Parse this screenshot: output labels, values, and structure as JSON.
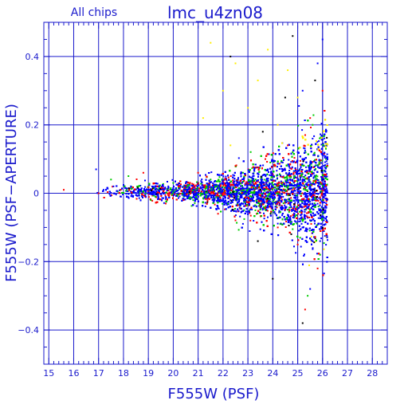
{
  "chart_data": {
    "type": "scatter",
    "title": "lmc_u4zn08",
    "subtitle": "All chips",
    "xlabel": "F555W (PSF)",
    "ylabel": "F555W (PSF−APERTURE)",
    "xlim": [
      14.8,
      28.6
    ],
    "ylim": [
      -0.5,
      0.5
    ],
    "xticks": [
      15,
      16,
      17,
      18,
      19,
      20,
      21,
      22,
      23,
      24,
      25,
      26,
      27,
      28
    ],
    "xtick_labels": [
      "15",
      "16",
      "17",
      "18",
      "19",
      "20",
      "21",
      "22",
      "23",
      "24",
      "25",
      "26",
      "27",
      "28"
    ],
    "yticks": [
      -0.4,
      -0.2,
      0,
      0.2,
      0.4
    ],
    "ytick_labels": [
      "−0.4",
      "−0.2",
      "0",
      "0.2",
      "0.4"
    ],
    "vlines": [
      25.0,
      26.0
    ],
    "grid": true,
    "series_colors": {
      "chip1": "#ff0000",
      "chip2": "#00cc00",
      "chip3": "#0000ff",
      "chip4": "#ffee00",
      "extra": "#000000"
    },
    "series": [
      {
        "color": "#0000ff",
        "points": [
          [
            16.9,
            0.07
          ],
          [
            17.2,
            0.01
          ],
          [
            17.6,
            0.02
          ],
          [
            17.9,
            -0.01
          ],
          [
            18.3,
            0.02
          ],
          [
            18.6,
            0.0
          ],
          [
            19.0,
            0.01
          ],
          [
            19.4,
            -0.01
          ],
          [
            19.8,
            0.02
          ],
          [
            20.2,
            0.0
          ],
          [
            20.6,
            0.01
          ],
          [
            21.0,
            -0.01
          ],
          [
            21.4,
            0.02
          ],
          [
            21.7,
            0.0
          ],
          [
            22.0,
            0.03
          ],
          [
            22.3,
            -0.02
          ],
          [
            22.6,
            0.04
          ],
          [
            22.9,
            -0.03
          ],
          [
            23.2,
            0.05
          ],
          [
            23.5,
            -0.04
          ],
          [
            23.8,
            0.07
          ],
          [
            24.1,
            -0.06
          ],
          [
            24.4,
            0.09
          ],
          [
            24.7,
            -0.08
          ],
          [
            25.0,
            0.12
          ],
          [
            25.3,
            -0.11
          ],
          [
            25.6,
            0.16
          ],
          [
            25.9,
            -0.14
          ],
          [
            25.2,
            0.3
          ],
          [
            25.8,
            0.38
          ],
          [
            25.5,
            -0.28
          ],
          [
            26.0,
            0.45
          ]
        ]
      },
      {
        "color": "#00cc00",
        "points": [
          [
            17.5,
            0.04
          ],
          [
            18.2,
            0.05
          ],
          [
            19.1,
            -0.02
          ],
          [
            20.0,
            0.03
          ],
          [
            20.8,
            -0.02
          ],
          [
            21.5,
            0.04
          ],
          [
            22.2,
            -0.03
          ],
          [
            22.8,
            0.06
          ],
          [
            23.3,
            -0.05
          ],
          [
            23.9,
            0.09
          ],
          [
            24.3,
            -0.09
          ],
          [
            24.8,
            0.12
          ],
          [
            25.1,
            -0.13
          ],
          [
            25.6,
            0.2
          ],
          [
            25.9,
            -0.18
          ],
          [
            25.4,
            -0.3
          ]
        ]
      },
      {
        "color": "#ff0000",
        "points": [
          [
            15.6,
            0.01
          ],
          [
            17.0,
            0.0
          ],
          [
            18.8,
            0.06
          ],
          [
            19.7,
            -0.03
          ],
          [
            21.0,
            0.06
          ],
          [
            21.8,
            -0.06
          ],
          [
            22.5,
            0.08
          ],
          [
            23.1,
            -0.08
          ],
          [
            23.7,
            0.1
          ],
          [
            24.2,
            -0.1
          ],
          [
            24.6,
            0.14
          ],
          [
            25.0,
            -0.15
          ],
          [
            25.5,
            0.22
          ],
          [
            25.8,
            -0.22
          ],
          [
            26.0,
            0.3
          ],
          [
            25.3,
            -0.34
          ]
        ]
      },
      {
        "color": "#ffee00",
        "points": [
          [
            21.5,
            0.44
          ],
          [
            22.0,
            0.3
          ],
          [
            22.5,
            0.38
          ],
          [
            23.0,
            0.25
          ],
          [
            23.4,
            0.33
          ],
          [
            23.8,
            0.42
          ],
          [
            24.2,
            0.2
          ],
          [
            24.6,
            0.36
          ],
          [
            25.0,
            0.28
          ],
          [
            22.3,
            0.14
          ],
          [
            21.2,
            0.22
          ]
        ]
      },
      {
        "color": "#000000",
        "points": [
          [
            22.3,
            0.4
          ],
          [
            23.6,
            0.18
          ],
          [
            24.0,
            -0.25
          ],
          [
            24.5,
            0.28
          ],
          [
            25.2,
            -0.38
          ],
          [
            25.7,
            0.33
          ],
          [
            23.4,
            -0.14
          ],
          [
            24.8,
            0.46
          ]
        ]
      }
    ],
    "density_model": {
      "center_offset": 0.005,
      "n_points": 9000,
      "mag_range": [
        16.8,
        26.3
      ],
      "spread_base": 0.006,
      "spread_growth": 0.0028,
      "cutoff_mag": 26.2
    }
  }
}
